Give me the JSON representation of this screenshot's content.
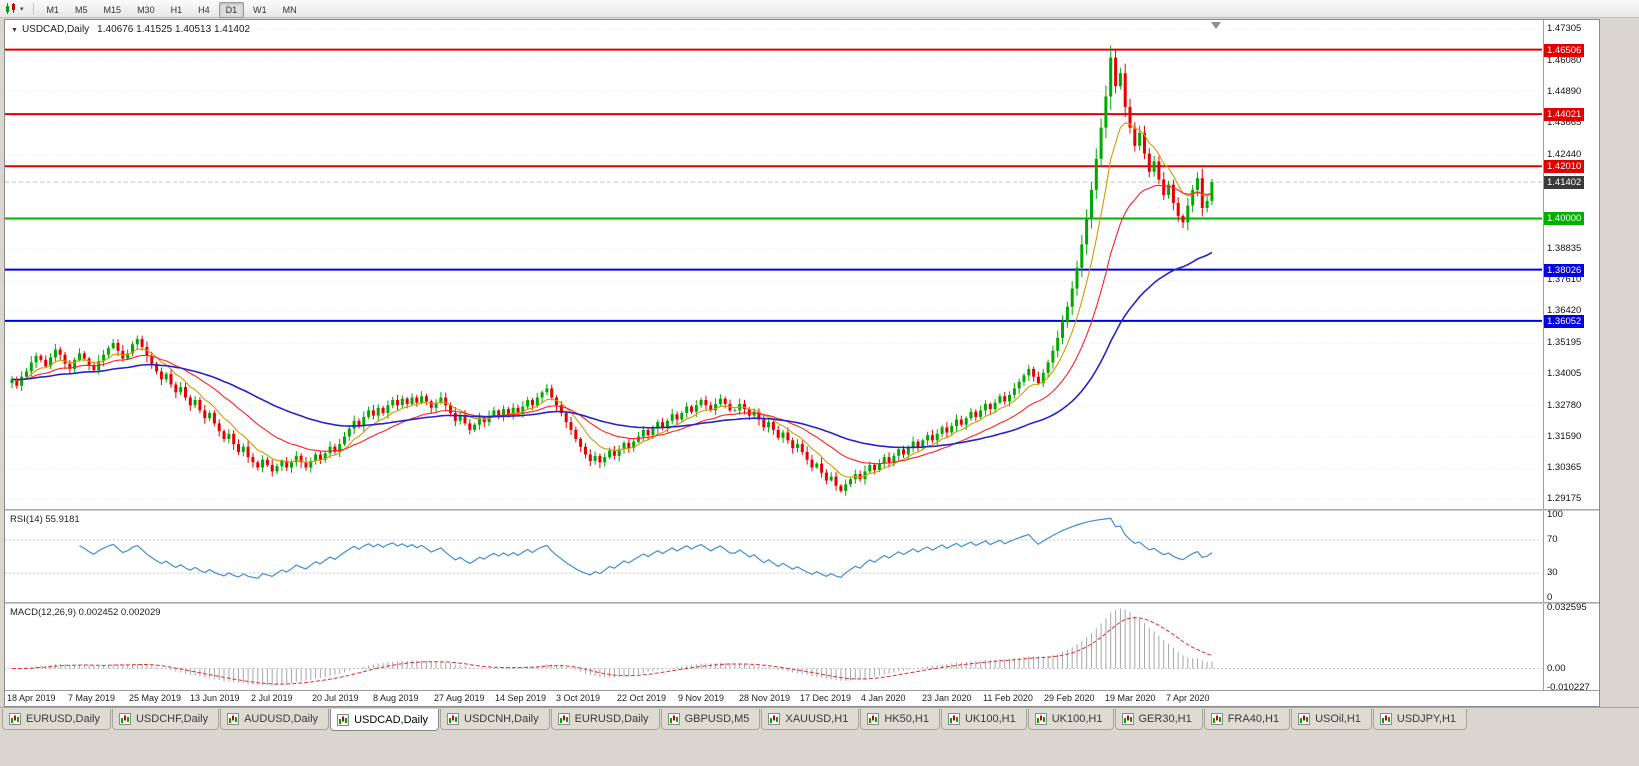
{
  "toolbar": {
    "timeframes": [
      {
        "label": "M1",
        "active": false
      },
      {
        "label": "M5",
        "active": false
      },
      {
        "label": "M15",
        "active": false
      },
      {
        "label": "M30",
        "active": false
      },
      {
        "label": "H1",
        "active": false
      },
      {
        "label": "H4",
        "active": false
      },
      {
        "label": "D1",
        "active": true
      },
      {
        "label": "W1",
        "active": false
      },
      {
        "label": "MN",
        "active": false
      }
    ]
  },
  "chart": {
    "symbol_title": "USDCAD,Daily",
    "ohlc_text": "1.40676 1.41525 1.40513 1.41402",
    "price_axis_labels": [
      "1.47305",
      "1.46080",
      "1.44890",
      "1.43665",
      "1.42440",
      "1.38835",
      "1.37610",
      "1.36420",
      "1.35195",
      "1.34005",
      "1.32780",
      "1.31590",
      "1.30365",
      "1.29175"
    ]
  },
  "indicators": {
    "rsi": {
      "title": "RSI(14) 55.9181",
      "period": 14,
      "value": 55.9181,
      "color": "#3f8fd6",
      "levels": [
        70,
        30
      ],
      "axis_labels": [
        {
          "text": "100",
          "value": 100
        },
        {
          "text": "70",
          "value": 70
        },
        {
          "text": "30",
          "value": 30
        },
        {
          "text": "0",
          "value": 0
        }
      ]
    },
    "macd": {
      "title": "MACD(12,26,9) 0.002452 0.002029",
      "params": [
        12,
        26,
        9
      ],
      "values": [
        0.002452,
        0.002029
      ],
      "hist_color": "#a6a6a6",
      "signal_color": "#e03030",
      "range": [
        -0.0115,
        0.0345
      ],
      "axis_labels": [
        {
          "text": "0.032595",
          "value": 0.032595
        },
        {
          "text": "0.00",
          "value": 0
        },
        {
          "text": "-0.010227",
          "value": -0.010227
        }
      ]
    }
  },
  "chart_data": {
    "type": "candlestick",
    "symbol": "USDCAD",
    "timeframe": "Daily",
    "x_labels": [
      "18 Apr 2019",
      "7 May 2019",
      "25 May 2019",
      "13 Jun 2019",
      "2 Jul 2019",
      "20 Jul 2019",
      "8 Aug 2019",
      "27 Aug 2019",
      "14 Sep 2019",
      "3 Oct 2019",
      "22 Oct 2019",
      "9 Nov 2019",
      "28 Nov 2019",
      "17 Dec 2019",
      "4 Jan 2020",
      "23 Jan 2020",
      "11 Feb 2020",
      "29 Feb 2020",
      "19 Mar 2020",
      "7 Apr 2020"
    ],
    "y_domain": [
      1.288,
      1.4765
    ],
    "closes_approx": [
      1.338,
      1.3355,
      1.339,
      1.341,
      1.3445,
      1.347,
      1.3455,
      1.343,
      1.3465,
      1.3495,
      1.3475,
      1.344,
      1.342,
      1.3455,
      1.348,
      1.346,
      1.3435,
      1.3415,
      1.345,
      1.3475,
      1.35,
      1.352,
      1.349,
      1.346,
      1.348,
      1.3515,
      1.3535,
      1.3505,
      1.347,
      1.344,
      1.341,
      1.338,
      1.34,
      1.336,
      1.333,
      1.335,
      1.331,
      1.328,
      1.33,
      1.326,
      1.323,
      1.325,
      1.321,
      1.318,
      1.315,
      1.317,
      1.313,
      1.31,
      1.312,
      1.308,
      1.306,
      1.304,
      1.307,
      1.305,
      1.3025,
      1.3045,
      1.3065,
      1.304,
      1.306,
      1.3085,
      1.306,
      1.304,
      1.3065,
      1.309,
      1.307,
      1.3095,
      1.312,
      1.31,
      1.313,
      1.316,
      1.319,
      1.322,
      1.32,
      1.3235,
      1.326,
      1.324,
      1.327,
      1.325,
      1.328,
      1.33,
      1.328,
      1.3305,
      1.3285,
      1.331,
      1.329,
      1.3315,
      1.3295,
      1.327,
      1.329,
      1.331,
      1.328,
      1.325,
      1.322,
      1.324,
      1.321,
      1.3185,
      1.3205,
      1.323,
      1.3215,
      1.324,
      1.326,
      1.324,
      1.3265,
      1.3245,
      1.327,
      1.325,
      1.3275,
      1.33,
      1.328,
      1.331,
      1.333,
      1.3345,
      1.331,
      1.328,
      1.325,
      1.3215,
      1.3185,
      1.315,
      1.312,
      1.309,
      1.3065,
      1.3085,
      1.306,
      1.308,
      1.3105,
      1.3085,
      1.311,
      1.3135,
      1.3115,
      1.314,
      1.316,
      1.3185,
      1.3165,
      1.319,
      1.3215,
      1.3195,
      1.322,
      1.3245,
      1.3225,
      1.325,
      1.3275,
      1.3255,
      1.328,
      1.33,
      1.328,
      1.326,
      1.3285,
      1.3305,
      1.3285,
      1.326,
      1.326,
      1.3285,
      1.3265,
      1.324,
      1.3255,
      1.3225,
      1.3195,
      1.3215,
      1.3185,
      1.3155,
      1.3175,
      1.3145,
      1.3115,
      1.313,
      1.31,
      1.307,
      1.304,
      1.3055,
      1.302,
      1.299,
      1.3005,
      1.297,
      1.295,
      1.2975,
      1.2995,
      1.3015,
      1.2995,
      1.3025,
      1.305,
      1.303,
      1.3055,
      1.308,
      1.306,
      1.3085,
      1.311,
      1.309,
      1.3115,
      1.314,
      1.312,
      1.3145,
      1.3165,
      1.3145,
      1.317,
      1.3195,
      1.3175,
      1.32,
      1.3225,
      1.3205,
      1.323,
      1.3255,
      1.3235,
      1.326,
      1.3285,
      1.3265,
      1.329,
      1.3315,
      1.3295,
      1.332,
      1.3345,
      1.337,
      1.3395,
      1.342,
      1.339,
      1.3365,
      1.3405,
      1.3445,
      1.349,
      1.354,
      1.36,
      1.366,
      1.373,
      1.381,
      1.39,
      1.4,
      1.411,
      1.423,
      1.435,
      1.447,
      1.462,
      1.451,
      1.456,
      1.443,
      1.435,
      1.428,
      1.433,
      1.425,
      1.418,
      1.422,
      1.415,
      1.409,
      1.413,
      1.406,
      1.401,
      1.3985,
      1.405,
      1.411,
      1.4155,
      1.404,
      1.40676,
      1.41402
    ],
    "last_ohlc": {
      "open": 1.40676,
      "high": 1.41525,
      "low": 1.40513,
      "close": 1.41402
    },
    "levels": [
      {
        "value": 1.46506,
        "label": "1.46506",
        "color": "#e00000",
        "width": 2
      },
      {
        "value": 1.44021,
        "label": "1.44021",
        "color": "#e00000",
        "width": 2
      },
      {
        "value": 1.4201,
        "label": "1.42010",
        "color": "#e00000",
        "width": 2
      },
      {
        "value": 1.4,
        "label": "1.40000",
        "color": "#00b000",
        "width": 2
      },
      {
        "value": 1.38026,
        "label": "1.38026",
        "color": "#0000e0",
        "width": 2
      },
      {
        "value": 1.36052,
        "label": "1.36052",
        "color": "#0000e0",
        "width": 2
      }
    ],
    "current_price": {
      "value": 1.41402,
      "label": "1.41402",
      "tag_color": "#3a3a3a"
    },
    "moving_averages": [
      {
        "period": 8,
        "color": "#cf9c00"
      },
      {
        "period": 21,
        "color": "#ff2020"
      },
      {
        "period": 55,
        "color": "#2424c8"
      }
    ],
    "candle_colors": {
      "up": "#00a800",
      "down": "#e80000"
    }
  },
  "tab_bar": {
    "tabs": [
      {
        "label": "EURUSD,Daily",
        "active": false
      },
      {
        "label": "USDCHF,Daily",
        "active": false
      },
      {
        "label": "AUDUSD,Daily",
        "active": false
      },
      {
        "label": "USDCAD,Daily",
        "active": true
      },
      {
        "label": "USDCNH,Daily",
        "active": false
      },
      {
        "label": "EURUSD,Daily",
        "active": false
      },
      {
        "label": "GBPUSD,M5",
        "active": false
      },
      {
        "label": "XAUUSD,H1",
        "active": false
      },
      {
        "label": "HK50,H1",
        "active": false
      },
      {
        "label": "UK100,H1",
        "active": false
      },
      {
        "label": "UK100,H1",
        "active": false
      },
      {
        "label": "GER30,H1",
        "active": false
      },
      {
        "label": "FRA40,H1",
        "active": false
      },
      {
        "label": "USOil,H1",
        "active": false
      },
      {
        "label": "USDJPY,H1",
        "active": false
      }
    ]
  }
}
